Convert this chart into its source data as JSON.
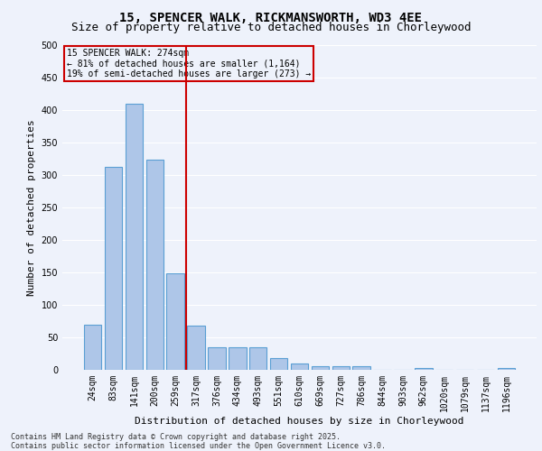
{
  "title_line1": "15, SPENCER WALK, RICKMANSWORTH, WD3 4EE",
  "title_line2": "Size of property relative to detached houses in Chorleywood",
  "xlabel": "Distribution of detached houses by size in Chorleywood",
  "ylabel": "Number of detached properties",
  "categories": [
    "24sqm",
    "83sqm",
    "141sqm",
    "200sqm",
    "259sqm",
    "317sqm",
    "376sqm",
    "434sqm",
    "493sqm",
    "551sqm",
    "610sqm",
    "669sqm",
    "727sqm",
    "786sqm",
    "844sqm",
    "903sqm",
    "962sqm",
    "1020sqm",
    "1079sqm",
    "1137sqm",
    "1196sqm"
  ],
  "values": [
    70,
    312,
    410,
    323,
    148,
    68,
    35,
    35,
    35,
    18,
    10,
    5,
    6,
    6,
    0,
    0,
    3,
    0,
    0,
    0,
    3
  ],
  "bar_color": "#aec6e8",
  "bar_edge_color": "#5a9fd4",
  "vline_x": 4.5,
  "vline_color": "#cc0000",
  "annotation_text": "15 SPENCER WALK: 274sqm\n← 81% of detached houses are smaller (1,164)\n19% of semi-detached houses are larger (273) →",
  "annotation_box_color": "#cc0000",
  "ylim": [
    0,
    500
  ],
  "yticks": [
    0,
    50,
    100,
    150,
    200,
    250,
    300,
    350,
    400,
    450,
    500
  ],
  "bg_color": "#eef2fb",
  "grid_color": "#ffffff",
  "footnote": "Contains HM Land Registry data © Crown copyright and database right 2025.\nContains public sector information licensed under the Open Government Licence v3.0.",
  "title_fontsize": 10,
  "subtitle_fontsize": 9,
  "axis_label_fontsize": 8,
  "tick_fontsize": 7,
  "annotation_fontsize": 7,
  "footnote_fontsize": 6
}
